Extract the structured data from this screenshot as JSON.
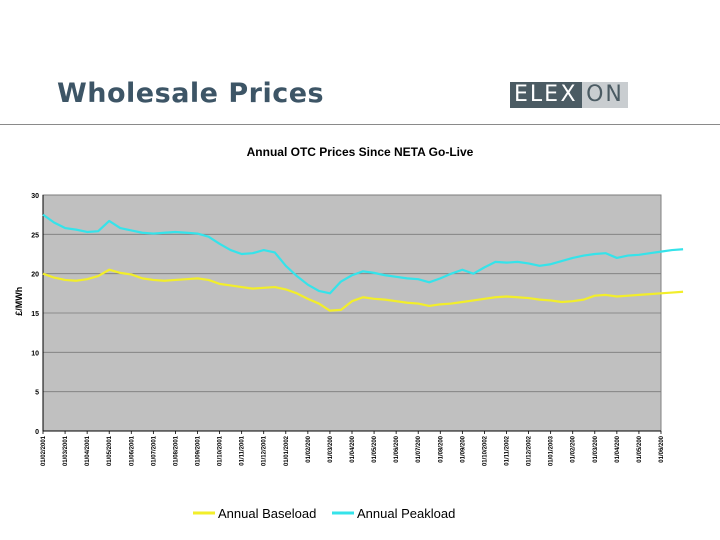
{
  "slide": {
    "title": "Wholesale Prices",
    "logo": {
      "left": "ELE",
      "mid": "X",
      "right": "ON"
    }
  },
  "colors": {
    "baseload": "#f2ee2a",
    "peakload": "#35e3ea",
    "plot_bg": "#c0c0c0",
    "grid": "#7a7a7a"
  },
  "chart_data": {
    "type": "line",
    "title": "Annual OTC Prices Since NETA Go-Live",
    "ylabel": "£/MWh",
    "xlabel": "",
    "ylim": [
      0,
      30
    ],
    "yticks": [
      0,
      5,
      10,
      15,
      20,
      25,
      30
    ],
    "grid": true,
    "legend_position": "bottom",
    "x_ticks": [
      "01/02/2001",
      "01/03/2001",
      "01/04/2001",
      "01/05/2001",
      "01/06/2001",
      "01/07/2001",
      "01/08/2001",
      "01/09/2001",
      "01/10/2001",
      "01/11/2001",
      "01/12/2001",
      "01/01/2002",
      "01/02/200",
      "01/03/200",
      "01/04/200",
      "01/05/200",
      "01/06/200",
      "01/07/200",
      "01/08/200",
      "01/09/200",
      "01/10/2002",
      "01/11/2002",
      "01/12/2002",
      "01/01/2003",
      "01/02/200",
      "01/03/200",
      "01/04/200",
      "01/05/200",
      "01/06/200"
    ],
    "x": [
      0,
      0.5,
      1,
      1.5,
      2,
      2.5,
      3,
      3.5,
      4,
      4.5,
      5,
      5.5,
      6,
      6.5,
      7,
      7.5,
      8,
      8.5,
      9,
      9.5,
      10,
      10.5,
      11,
      11.5,
      12,
      12.5,
      13,
      13.5,
      14,
      14.5,
      15,
      15.5,
      16,
      16.5,
      17,
      17.5,
      18,
      18.5,
      19,
      19.5,
      20,
      20.5,
      21,
      21.5,
      22,
      22.5,
      23,
      23.5,
      24,
      24.5,
      25,
      25.5,
      26,
      26.5,
      27,
      27.5,
      28,
      28.5,
      29
    ],
    "series": [
      {
        "name": "Annual Baseload",
        "values": [
          20,
          19.5,
          19.2,
          19.1,
          19.3,
          19.7,
          20.5,
          20.1,
          19.9,
          19.4,
          19.2,
          19.1,
          19.2,
          19.3,
          19.4,
          19.2,
          18.7,
          18.5,
          18.3,
          18.1,
          18.2,
          18.3,
          18.0,
          17.5,
          16.8,
          16.2,
          15.3,
          15.4,
          16.5,
          17.0,
          16.8,
          16.7,
          16.5,
          16.3,
          16.2,
          15.9,
          16.1,
          16.2,
          16.4,
          16.6,
          16.8,
          17.0,
          17.1,
          17.0,
          16.9,
          16.7,
          16.6,
          16.4,
          16.5,
          16.7,
          17.2,
          17.3,
          17.1,
          17.2,
          17.3,
          17.4,
          17.5,
          17.6,
          17.7
        ]
      },
      {
        "name": "Annual Peakload",
        "values": [
          27.5,
          26.5,
          25.8,
          25.6,
          25.3,
          25.4,
          26.7,
          25.8,
          25.5,
          25.2,
          25.1,
          25.2,
          25.3,
          25.2,
          25.1,
          24.7,
          23.8,
          23.0,
          22.5,
          22.6,
          23.0,
          22.7,
          21.0,
          19.7,
          18.6,
          17.8,
          17.5,
          19.0,
          19.8,
          20.3,
          20.1,
          19.8,
          19.6,
          19.4,
          19.3,
          18.9,
          19.4,
          20.0,
          20.5,
          20.0,
          20.8,
          21.5,
          21.4,
          21.5,
          21.3,
          21.0,
          21.2,
          21.6,
          22.0,
          22.3,
          22.5,
          22.6,
          22.0,
          22.3,
          22.4,
          22.6,
          22.8,
          23.0,
          23.1
        ]
      }
    ]
  }
}
